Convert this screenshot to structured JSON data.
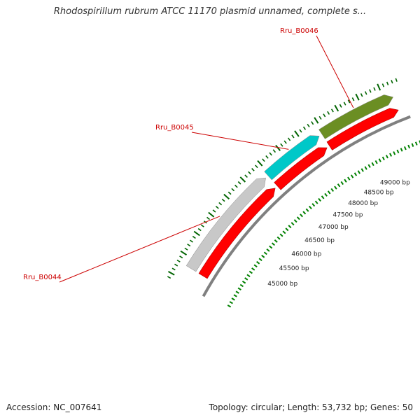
{
  "title": "Rhodospirillum rubrum ATCC 11170 plasmid unnamed, complete s...",
  "footer": {
    "accession": "Accession: NC_007641",
    "summary": "Topology: circular; Length: 53,732 bp; Genes: 50"
  },
  "colors": {
    "cds": "#ff0000",
    "backbone": "#808080",
    "tick_outer": "#006400",
    "tick_inner": "#008000",
    "label": "#cc0000"
  },
  "genes": [
    {
      "label": "Rru_B0044",
      "start": 44300,
      "end": 46880,
      "color": "#c8c8c8"
    },
    {
      "label": "Rru_B0045",
      "start": 46950,
      "end": 48370,
      "color": "#00c8c8"
    },
    {
      "label": "Rru_B0046",
      "start": 48440,
      "end": 50200,
      "color": "#6b8e23"
    }
  ],
  "cds_arrows": [
    {
      "start": 44300,
      "end": 46880
    },
    {
      "start": 46950,
      "end": 48370
    },
    {
      "start": 48440,
      "end": 50200
    }
  ],
  "bp_ticks": [
    {
      "bp": 45000,
      "label": "45000 bp"
    },
    {
      "bp": 45500,
      "label": "45500 bp"
    },
    {
      "bp": 46000,
      "label": "46000 bp"
    },
    {
      "bp": 46500,
      "label": "46500 bp"
    },
    {
      "bp": 47000,
      "label": "47000 bp"
    },
    {
      "bp": 47500,
      "label": "47500 bp"
    },
    {
      "bp": 48000,
      "label": "48000 bp"
    },
    {
      "bp": 48500,
      "label": "48500 bp"
    },
    {
      "bp": 49000,
      "label": "49000 bp"
    }
  ]
}
